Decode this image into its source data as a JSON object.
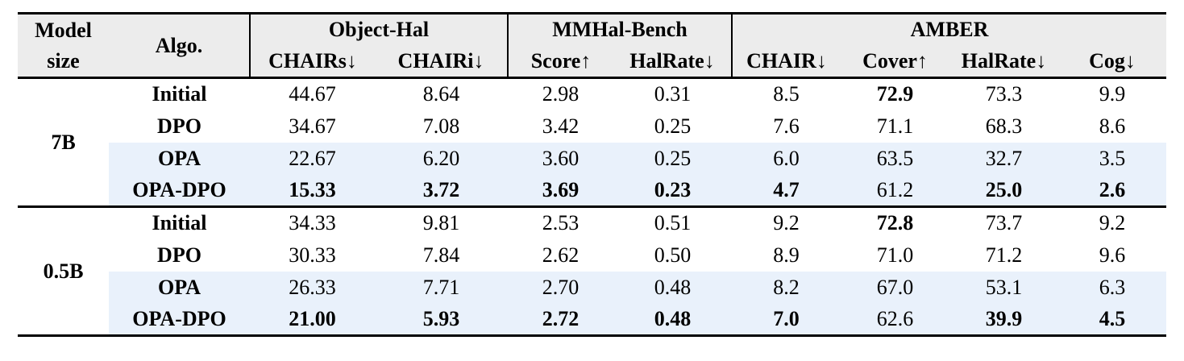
{
  "colors": {
    "header_bg": "#ececec",
    "highlight_bg": "#e9f1fb",
    "rule": "#000000"
  },
  "header": {
    "model_size": "Model\nsize",
    "algo": "Algo.",
    "groups": [
      {
        "label": "Object-Hal",
        "cols": [
          "CHAIRs↓",
          "CHAIRi↓"
        ]
      },
      {
        "label": "MMHal-Bench",
        "cols": [
          "Score↑",
          "HalRate↓"
        ]
      },
      {
        "label": "AMBER",
        "cols": [
          "CHAIR↓",
          "Cover↑",
          "HalRate↓",
          "Cog↓"
        ]
      }
    ]
  },
  "groups": [
    {
      "model_size": "7B",
      "rows": [
        {
          "algo": "Initial",
          "highlight": false,
          "values": [
            {
              "v": "44.67",
              "b": false
            },
            {
              "v": "8.64",
              "b": false
            },
            {
              "v": "2.98",
              "b": false
            },
            {
              "v": "0.31",
              "b": false
            },
            {
              "v": "8.5",
              "b": false
            },
            {
              "v": "72.9",
              "b": true
            },
            {
              "v": "73.3",
              "b": false
            },
            {
              "v": "9.9",
              "b": false
            }
          ]
        },
        {
          "algo": "DPO",
          "highlight": false,
          "values": [
            {
              "v": "34.67",
              "b": false
            },
            {
              "v": "7.08",
              "b": false
            },
            {
              "v": "3.42",
              "b": false
            },
            {
              "v": "0.25",
              "b": false
            },
            {
              "v": "7.6",
              "b": false
            },
            {
              "v": "71.1",
              "b": false
            },
            {
              "v": "68.3",
              "b": false
            },
            {
              "v": "8.6",
              "b": false
            }
          ]
        },
        {
          "algo": "OPA",
          "highlight": true,
          "values": [
            {
              "v": "22.67",
              "b": false
            },
            {
              "v": "6.20",
              "b": false
            },
            {
              "v": "3.60",
              "b": false
            },
            {
              "v": "0.25",
              "b": false
            },
            {
              "v": "6.0",
              "b": false
            },
            {
              "v": "63.5",
              "b": false
            },
            {
              "v": "32.7",
              "b": false
            },
            {
              "v": "3.5",
              "b": false
            }
          ]
        },
        {
          "algo": "OPA-DPO",
          "highlight": true,
          "values": [
            {
              "v": "15.33",
              "b": true
            },
            {
              "v": "3.72",
              "b": true
            },
            {
              "v": "3.69",
              "b": true
            },
            {
              "v": "0.23",
              "b": true
            },
            {
              "v": "4.7",
              "b": true
            },
            {
              "v": "61.2",
              "b": false
            },
            {
              "v": "25.0",
              "b": true
            },
            {
              "v": "2.6",
              "b": true
            }
          ]
        }
      ]
    },
    {
      "model_size": "0.5B",
      "rows": [
        {
          "algo": "Initial",
          "highlight": false,
          "values": [
            {
              "v": "34.33",
              "b": false
            },
            {
              "v": "9.81",
              "b": false
            },
            {
              "v": "2.53",
              "b": false
            },
            {
              "v": "0.51",
              "b": false
            },
            {
              "v": "9.2",
              "b": false
            },
            {
              "v": "72.8",
              "b": true
            },
            {
              "v": "73.7",
              "b": false
            },
            {
              "v": "9.2",
              "b": false
            }
          ]
        },
        {
          "algo": "DPO",
          "highlight": false,
          "values": [
            {
              "v": "30.33",
              "b": false
            },
            {
              "v": "7.84",
              "b": false
            },
            {
              "v": "2.62",
              "b": false
            },
            {
              "v": "0.50",
              "b": false
            },
            {
              "v": "8.9",
              "b": false
            },
            {
              "v": "71.0",
              "b": false
            },
            {
              "v": "71.2",
              "b": false
            },
            {
              "v": "9.6",
              "b": false
            }
          ]
        },
        {
          "algo": "OPA",
          "highlight": true,
          "values": [
            {
              "v": "26.33",
              "b": false
            },
            {
              "v": "7.71",
              "b": false
            },
            {
              "v": "2.70",
              "b": false
            },
            {
              "v": "0.48",
              "b": false
            },
            {
              "v": "8.2",
              "b": false
            },
            {
              "v": "67.0",
              "b": false
            },
            {
              "v": "53.1",
              "b": false
            },
            {
              "v": "6.3",
              "b": false
            }
          ]
        },
        {
          "algo": "OPA-DPO",
          "highlight": true,
          "values": [
            {
              "v": "21.00",
              "b": true
            },
            {
              "v": "5.93",
              "b": true
            },
            {
              "v": "2.72",
              "b": true
            },
            {
              "v": "0.48",
              "b": true
            },
            {
              "v": "7.0",
              "b": true
            },
            {
              "v": "62.6",
              "b": false
            },
            {
              "v": "39.9",
              "b": true
            },
            {
              "v": "4.5",
              "b": true
            }
          ]
        }
      ]
    }
  ]
}
